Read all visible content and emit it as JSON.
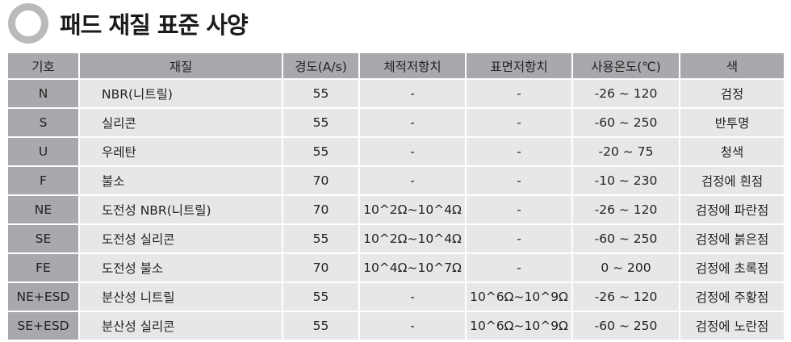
{
  "title": "패드 재질 표준 사양",
  "table": {
    "headers": [
      "기호",
      "재질",
      "경도(A/s)",
      "체적저항치",
      "표면저항치",
      "사용온도(℃)",
      "색"
    ],
    "rows": [
      [
        "N",
        "NBR(니트릴)",
        "55",
        "-",
        "-",
        "-26 ~ 120",
        "검정"
      ],
      [
        "S",
        "실리콘",
        "55",
        "-",
        "-",
        "-60 ~ 250",
        "반투명"
      ],
      [
        "U",
        "우레탄",
        "55",
        "-",
        "-",
        "-20 ~ 75",
        "청색"
      ],
      [
        "F",
        "불소",
        "70",
        "-",
        "-",
        "-10 ~ 230",
        "검정에 흰점"
      ],
      [
        "NE",
        "도전성 NBR(니트릴)",
        "70",
        "10^2Ω~10^4Ω",
        "-",
        "-26 ~ 120",
        "검정에 파란점"
      ],
      [
        "SE",
        "도전성 실리콘",
        "55",
        "10^2Ω~10^4Ω",
        "-",
        "-60 ~ 250",
        "검정에 붉은점"
      ],
      [
        "FE",
        "도전성 불소",
        "70",
        "10^4Ω~10^7Ω",
        "-",
        "0 ~ 200",
        "검정에 초록점"
      ],
      [
        "NE+ESD",
        "분산성 니트릴",
        "55",
        "-",
        "10^6Ω~10^9Ω",
        "-26 ~ 120",
        "검정에 주황점"
      ],
      [
        "SE+ESD",
        "분산성 실리콘",
        "55",
        "-",
        "10^6Ω~10^9Ω",
        "-60 ~ 250",
        "검정에 노란점"
      ]
    ]
  }
}
